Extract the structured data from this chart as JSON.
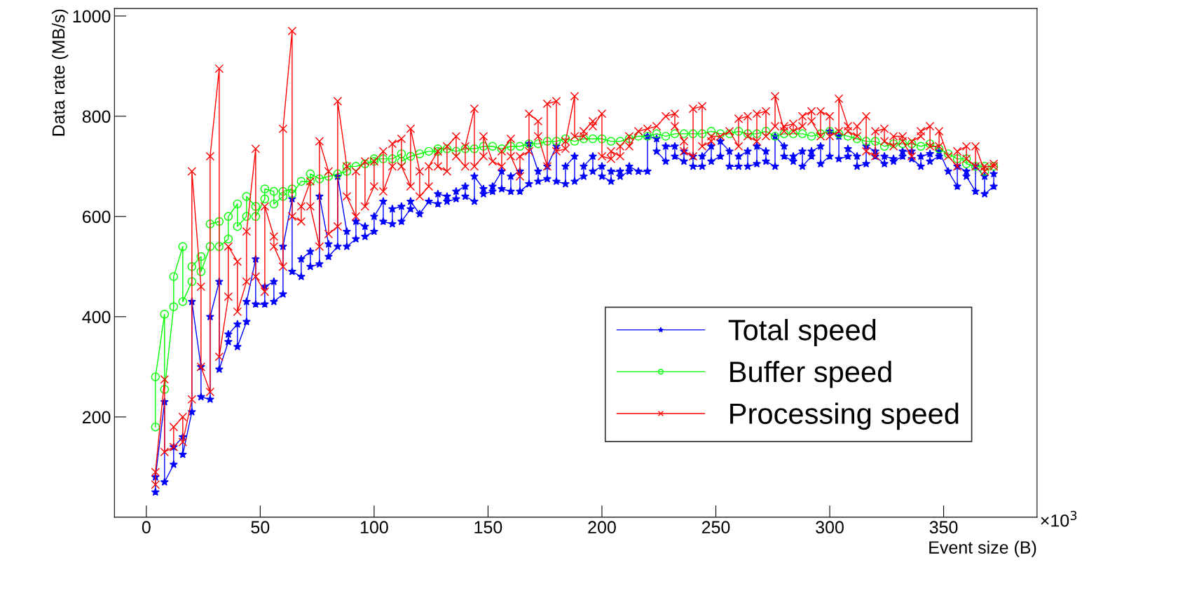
{
  "chart_data": {
    "type": "line",
    "xlabel": "Event size (B)",
    "ylabel": "Data rate (MB/s)",
    "annotations": [
      "×10$^{3}$"
    ],
    "xlim": [
      -14,
      391
    ],
    "xticks": [
      0,
      50,
      100,
      150,
      200,
      250,
      300,
      350
    ],
    "ylim": [
      0,
      1015
    ],
    "yticks": [
      200,
      400,
      600,
      800,
      1000
    ],
    "grid": false,
    "legend": "bottom right",
    "line_style": "solid",
    "series": [
      {
        "name": "Total speed",
        "color": "#0000ff",
        "marker": "star",
        "x": [
          4,
          4,
          8,
          8,
          12,
          12,
          16,
          16,
          20,
          20,
          24,
          24,
          28,
          28,
          32,
          32,
          36,
          36,
          40,
          40,
          44,
          44,
          48,
          48,
          52,
          52,
          56,
          56,
          60,
          60,
          64,
          64,
          68,
          68,
          72,
          72,
          76,
          76,
          80,
          80,
          84,
          84,
          88,
          88,
          92,
          92,
          96,
          96,
          100,
          100,
          104,
          104,
          108,
          108,
          112,
          112,
          116,
          116,
          120,
          124,
          128,
          128,
          132,
          132,
          136,
          136,
          140,
          140,
          144,
          144,
          148,
          148,
          152,
          152,
          156,
          156,
          160,
          160,
          164,
          164,
          168,
          168,
          172,
          172,
          176,
          176,
          180,
          180,
          184,
          184,
          188,
          188,
          192,
          192,
          196,
          196,
          200,
          200,
          204,
          204,
          208,
          208,
          212,
          212,
          216,
          220,
          220,
          224,
          224,
          228,
          228,
          232,
          232,
          236,
          236,
          240,
          240,
          244,
          244,
          248,
          248,
          252,
          252,
          256,
          256,
          260,
          260,
          264,
          264,
          268,
          268,
          272,
          272,
          276,
          276,
          280,
          280,
          284,
          284,
          288,
          288,
          292,
          292,
          296,
          296,
          300,
          300,
          304,
          304,
          308,
          308,
          312,
          312,
          316,
          316,
          320,
          320,
          324,
          324,
          328,
          328,
          332,
          332,
          336,
          336,
          340,
          340,
          344,
          344,
          348,
          348,
          352,
          356,
          356,
          360,
          360,
          364,
          364,
          368,
          368,
          372,
          372
        ],
        "values": [
          50,
          80,
          230,
          70,
          105,
          140,
          160,
          125,
          210,
          430,
          300,
          240,
          235,
          400,
          470,
          295,
          350,
          365,
          385,
          340,
          390,
          430,
          515,
          425,
          425,
          460,
          470,
          430,
          445,
          540,
          635,
          490,
          480,
          515,
          530,
          500,
          505,
          640,
          545,
          520,
          540,
          680,
          570,
          540,
          555,
          590,
          580,
          560,
          570,
          600,
          630,
          590,
          585,
          615,
          620,
          590,
          615,
          630,
          605,
          630,
          625,
          645,
          640,
          630,
          635,
          650,
          660,
          640,
          630,
          680,
          655,
          645,
          650,
          660,
          690,
          655,
          650,
          680,
          690,
          650,
          665,
          745,
          690,
          670,
          675,
          700,
          740,
          670,
          665,
          700,
          720,
          670,
          680,
          700,
          720,
          690,
          700,
          680,
          670,
          690,
          690,
          680,
          690,
          700,
          690,
          690,
          760,
          755,
          730,
          710,
          740,
          740,
          720,
          710,
          730,
          720,
          700,
          700,
          720,
          740,
          710,
          720,
          750,
          730,
          700,
          700,
          720,
          730,
          700,
          705,
          740,
          730,
          710,
          700,
          760,
          740,
          720,
          710,
          720,
          730,
          700,
          720,
          730,
          740,
          705,
          720,
          770,
          760,
          715,
          720,
          735,
          720,
          700,
          705,
          740,
          730,
          720,
          705,
          720,
          715,
          710,
          720,
          730,
          730,
          715,
          700,
          720,
          725,
          710,
          720,
          730,
          690,
          660,
          700,
          690,
          680,
          650,
          700,
          680,
          645,
          660,
          685
        ]
      },
      {
        "name": "Buffer speed",
        "color": "#00ff00",
        "marker": "circle",
        "x": [
          4,
          4,
          8,
          8,
          12,
          12,
          16,
          16,
          20,
          20,
          24,
          24,
          28,
          28,
          32,
          32,
          36,
          36,
          40,
          40,
          44,
          44,
          48,
          48,
          52,
          52,
          56,
          56,
          60,
          60,
          64,
          64,
          68,
          72,
          72,
          76,
          80,
          84,
          88,
          88,
          92,
          96,
          100,
          100,
          104,
          108,
          112,
          112,
          116,
          120,
          124,
          128,
          128,
          132,
          136,
          140,
          144,
          148,
          152,
          156,
          160,
          164,
          168,
          172,
          176,
          180,
          184,
          188,
          192,
          196,
          200,
          204,
          208,
          212,
          216,
          220,
          224,
          228,
          232,
          236,
          240,
          244,
          248,
          252,
          256,
          260,
          264,
          268,
          272,
          276,
          280,
          284,
          288,
          292,
          296,
          300,
          304,
          308,
          312,
          316,
          320,
          324,
          328,
          332,
          336,
          340,
          344,
          348,
          352,
          356,
          360,
          360,
          364,
          368,
          368,
          372
        ],
        "values": [
          180,
          280,
          405,
          255,
          420,
          480,
          540,
          430,
          470,
          500,
          520,
          490,
          540,
          585,
          590,
          540,
          555,
          600,
          625,
          580,
          600,
          640,
          620,
          600,
          635,
          655,
          650,
          625,
          640,
          650,
          655,
          645,
          670,
          670,
          685,
          675,
          680,
          685,
          690,
          700,
          700,
          705,
          710,
          715,
          715,
          715,
          725,
          710,
          720,
          725,
          730,
          730,
          735,
          735,
          730,
          735,
          735,
          740,
          740,
          735,
          740,
          740,
          745,
          745,
          750,
          750,
          755,
          750,
          755,
          755,
          755,
          750,
          750,
          755,
          760,
          760,
          765,
          760,
          765,
          765,
          765,
          765,
          770,
          765,
          765,
          770,
          765,
          765,
          770,
          760,
          765,
          765,
          765,
          760,
          765,
          770,
          765,
          760,
          755,
          750,
          750,
          740,
          745,
          745,
          745,
          740,
          745,
          735,
          725,
          715,
          715,
          705,
          700,
          700,
          690,
          700
        ]
      },
      {
        "name": "Processing speed",
        "color": "#ff0000",
        "marker": "cross",
        "x": [
          4,
          4,
          8,
          8,
          12,
          12,
          16,
          16,
          20,
          20,
          24,
          24,
          28,
          28,
          32,
          32,
          36,
          36,
          40,
          40,
          44,
          44,
          48,
          48,
          52,
          52,
          56,
          56,
          60,
          60,
          64,
          64,
          68,
          68,
          72,
          72,
          76,
          76,
          80,
          80,
          84,
          84,
          88,
          88,
          92,
          92,
          96,
          96,
          100,
          100,
          104,
          104,
          108,
          108,
          112,
          112,
          116,
          116,
          120,
          120,
          124,
          124,
          128,
          128,
          132,
          132,
          136,
          136,
          140,
          140,
          144,
          144,
          148,
          148,
          152,
          156,
          156,
          160,
          160,
          164,
          164,
          168,
          168,
          172,
          172,
          176,
          176,
          180,
          180,
          184,
          184,
          188,
          188,
          192,
          192,
          196,
          196,
          200,
          200,
          204,
          204,
          208,
          208,
          212,
          212,
          216,
          220,
          224,
          228,
          232,
          232,
          236,
          236,
          240,
          240,
          244,
          244,
          248,
          248,
          252,
          256,
          260,
          260,
          264,
          264,
          268,
          268,
          272,
          272,
          276,
          276,
          280,
          280,
          284,
          284,
          288,
          288,
          292,
          292,
          296,
          296,
          300,
          300,
          304,
          304,
          308,
          308,
          312,
          312,
          316,
          316,
          320,
          320,
          324,
          324,
          328,
          328,
          332,
          332,
          336,
          336,
          340,
          340,
          344,
          344,
          348,
          348,
          352,
          356,
          356,
          360,
          360,
          364,
          364,
          368,
          368,
          372,
          372
        ],
        "values": [
          65,
          90,
          275,
          130,
          140,
          180,
          200,
          150,
          235,
          690,
          460,
          300,
          250,
          720,
          895,
          320,
          440,
          540,
          510,
          410,
          470,
          570,
          735,
          480,
          450,
          620,
          560,
          540,
          500,
          775,
          970,
          600,
          590,
          620,
          670,
          620,
          540,
          750,
          690,
          565,
          580,
          830,
          700,
          640,
          600,
          690,
          710,
          620,
          660,
          710,
          730,
          650,
          700,
          745,
          755,
          700,
          660,
          775,
          690,
          640,
          660,
          700,
          730,
          700,
          690,
          740,
          760,
          720,
          700,
          740,
          815,
          700,
          720,
          760,
          710,
          700,
          730,
          755,
          720,
          680,
          720,
          730,
          805,
          790,
          760,
          700,
          825,
          830,
          730,
          735,
          750,
          840,
          760,
          760,
          770,
          790,
          780,
          805,
          720,
          715,
          730,
          720,
          740,
          760,
          740,
          770,
          775,
          780,
          800,
          805,
          780,
          750,
          730,
          720,
          815,
          820,
          740,
          750,
          760,
          760,
          770,
          740,
          795,
          800,
          760,
          750,
          805,
          810,
          760,
          780,
          840,
          770,
          780,
          785,
          770,
          780,
          800,
          810,
          790,
          760,
          810,
          800,
          760,
          770,
          835,
          780,
          770,
          760,
          780,
          800,
          730,
          720,
          770,
          775,
          750,
          740,
          760,
          760,
          750,
          720,
          750,
          760,
          770,
          780,
          740,
          740,
          770,
          720,
          700,
          730,
          740,
          715,
          700,
          740,
          690,
          700,
          700,
          705
        ]
      }
    ]
  }
}
